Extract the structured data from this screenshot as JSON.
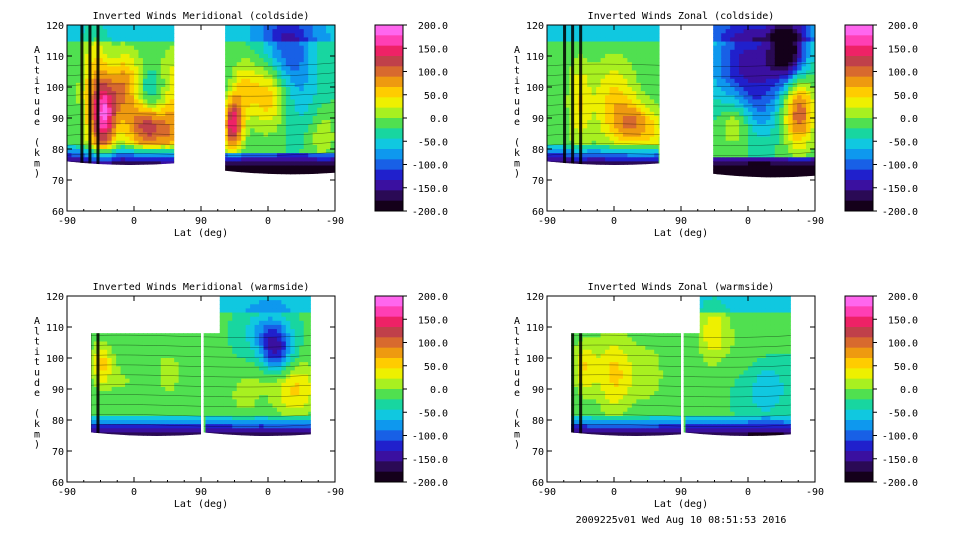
{
  "footer": "2009225v01 Wed Aug 10 08:51:53 2016",
  "colorbar": {
    "labels": [
      "200.0",
      "150.0",
      "100.0",
      "50.0",
      "0.0",
      "-50.0",
      "-100.0",
      "-150.0",
      "-200.0"
    ],
    "colors": [
      "#ff66ee",
      "#ff3fb4",
      "#ee2266",
      "#c0404a",
      "#d86a2e",
      "#ee9a10",
      "#ffcc00",
      "#eef000",
      "#a8f020",
      "#50e050",
      "#18d6a0",
      "#10c8e0",
      "#0e98ee",
      "#1860e6",
      "#2020cc",
      "#3a10a0",
      "#2a0a55",
      "#14001a"
    ]
  },
  "chart_data": [
    {
      "type": "contour",
      "title": "Inverted Winds Meridional (coldside)",
      "xlabel": "Lat (deg)",
      "ylabel": "Altitude (km)",
      "xticks": [
        "-90",
        "0",
        "90",
        "0",
        "-90"
      ],
      "yticks": [
        "60",
        "70",
        "80",
        "90",
        "100",
        "110",
        "120"
      ],
      "ylim": [
        60,
        120
      ],
      "zlim": [
        -200,
        200
      ],
      "blobs": [
        {
          "x": 0.1,
          "y": 98,
          "v": 80,
          "rx": 0.035,
          "ry": 14
        },
        {
          "x": 0.14,
          "y": 90,
          "v": 150,
          "rx": 0.03,
          "ry": 8
        },
        {
          "x": 0.22,
          "y": 99,
          "v": 120,
          "rx": 0.05,
          "ry": 8
        },
        {
          "x": 0.3,
          "y": 95,
          "v": -100,
          "rx": 0.05,
          "ry": 7
        },
        {
          "x": 0.3,
          "y": 88,
          "v": 180,
          "rx": 0.05,
          "ry": 6
        },
        {
          "x": 0.4,
          "y": 100,
          "v": 60,
          "rx": 0.05,
          "ry": 9
        },
        {
          "x": 0.4,
          "y": 85,
          "v": 70,
          "rx": 0.04,
          "ry": 6
        },
        {
          "x": 0.62,
          "y": 88,
          "v": 170,
          "rx": 0.025,
          "ry": 6
        },
        {
          "x": 0.66,
          "y": 100,
          "v": 60,
          "rx": 0.03,
          "ry": 6
        },
        {
          "x": 0.75,
          "y": 98,
          "v": 90,
          "rx": 0.05,
          "ry": 8
        },
        {
          "x": 0.82,
          "y": 112,
          "v": -90,
          "rx": 0.07,
          "ry": 9
        },
        {
          "x": 0.88,
          "y": 95,
          "v": -30,
          "rx": 0.06,
          "ry": 9
        },
        {
          "x": 0.95,
          "y": 85,
          "v": 40,
          "rx": 0.04,
          "ry": 6
        }
      ]
    },
    {
      "type": "contour",
      "title": "Inverted Winds Zonal (coldside)",
      "xlabel": "Lat (deg)",
      "ylabel": "Altitude (km)",
      "xticks": [
        "-90",
        "0",
        "90",
        "0",
        "-90"
      ],
      "yticks": [
        "60",
        "70",
        "80",
        "90",
        "100",
        "110",
        "120"
      ],
      "ylim": [
        60,
        120
      ],
      "zlim": [
        -200,
        200
      ],
      "blobs": [
        {
          "x": 0.12,
          "y": 95,
          "v": 60,
          "rx": 0.03,
          "ry": 10
        },
        {
          "x": 0.25,
          "y": 95,
          "v": 70,
          "rx": 0.06,
          "ry": 10
        },
        {
          "x": 0.32,
          "y": 88,
          "v": 80,
          "rx": 0.05,
          "ry": 5
        },
        {
          "x": 0.4,
          "y": 85,
          "v": 40,
          "rx": 0.05,
          "ry": 6
        },
        {
          "x": 0.75,
          "y": 108,
          "v": -120,
          "rx": 0.1,
          "ry": 10
        },
        {
          "x": 0.7,
          "y": 88,
          "v": 50,
          "rx": 0.04,
          "ry": 5
        },
        {
          "x": 0.8,
          "y": 93,
          "v": -40,
          "rx": 0.05,
          "ry": 8
        },
        {
          "x": 0.94,
          "y": 92,
          "v": 130,
          "rx": 0.04,
          "ry": 8
        },
        {
          "x": 0.9,
          "y": 112,
          "v": -160,
          "rx": 0.05,
          "ry": 7
        }
      ]
    },
    {
      "type": "contour",
      "title": "Inverted Winds Meridional (warmside)",
      "xlabel": "Lat (deg)",
      "ylabel": "Altitude (km)",
      "xticks": [
        "-90",
        "0",
        "90",
        "0",
        "-90"
      ],
      "yticks": [
        "60",
        "70",
        "80",
        "90",
        "100",
        "110",
        "120"
      ],
      "ylim": [
        60,
        120
      ],
      "zlim": [
        -200,
        200
      ],
      "blobs": [
        {
          "x": 0.13,
          "y": 98,
          "v": 70,
          "rx": 0.03,
          "ry": 5
        },
        {
          "x": 0.22,
          "y": 92,
          "v": 20,
          "rx": 0.05,
          "ry": 6
        },
        {
          "x": 0.38,
          "y": 95,
          "v": 30,
          "rx": 0.04,
          "ry": 6
        },
        {
          "x": 0.72,
          "y": 108,
          "v": -40,
          "rx": 0.05,
          "ry": 5
        },
        {
          "x": 0.74,
          "y": 95,
          "v": 20,
          "rx": 0.04,
          "ry": 5
        },
        {
          "x": 0.78,
          "y": 103,
          "v": -120,
          "rx": 0.04,
          "ry": 6
        },
        {
          "x": 0.85,
          "y": 90,
          "v": 70,
          "rx": 0.06,
          "ry": 6
        },
        {
          "x": 0.66,
          "y": 88,
          "v": 30,
          "rx": 0.04,
          "ry": 5
        }
      ]
    },
    {
      "type": "contour",
      "title": "Inverted Winds Zonal (warmside)",
      "xlabel": "Lat (deg)",
      "ylabel": "Altitude (km)",
      "xticks": [
        "-90",
        "0",
        "90",
        "0",
        "-90"
      ],
      "yticks": [
        "60",
        "70",
        "80",
        "90",
        "100",
        "110",
        "120"
      ],
      "ylim": [
        60,
        120
      ],
      "zlim": [
        -200,
        200
      ],
      "blobs": [
        {
          "x": 0.14,
          "y": 97,
          "v": 60,
          "rx": 0.03,
          "ry": 6
        },
        {
          "x": 0.25,
          "y": 95,
          "v": 70,
          "rx": 0.05,
          "ry": 9
        },
        {
          "x": 0.38,
          "y": 95,
          "v": 30,
          "rx": 0.05,
          "ry": 8
        },
        {
          "x": 0.62,
          "y": 108,
          "v": 60,
          "rx": 0.04,
          "ry": 7
        },
        {
          "x": 0.75,
          "y": 105,
          "v": 20,
          "rx": 0.05,
          "ry": 7
        },
        {
          "x": 0.82,
          "y": 90,
          "v": -40,
          "rx": 0.06,
          "ry": 7
        },
        {
          "x": 0.85,
          "y": 110,
          "v": 10,
          "rx": 0.05,
          "ry": 6
        }
      ]
    }
  ]
}
